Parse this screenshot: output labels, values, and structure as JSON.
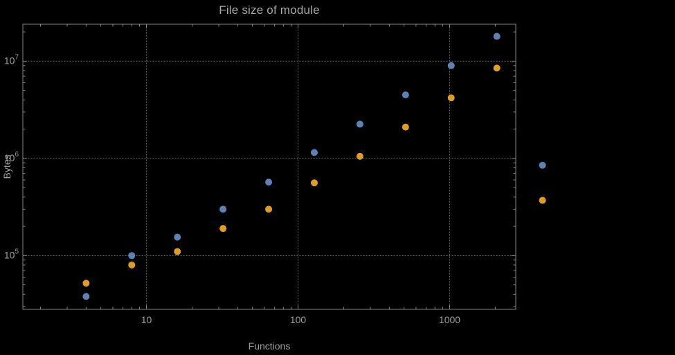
{
  "title": "File size of module",
  "chart_data": {
    "type": "scatter",
    "title": "File size of module",
    "xlabel": "Functions",
    "ylabel": "Bytes",
    "x_scale": "log",
    "y_scale": "log",
    "x_range": [
      1.53,
      2730
    ],
    "y_range": [
      28000,
      24000000
    ],
    "x_ticks": [
      {
        "value": 10,
        "label": "10"
      },
      {
        "value": 100,
        "label": "100"
      },
      {
        "value": 1000,
        "label": "1000"
      }
    ],
    "y_ticks": [
      {
        "value": 100000,
        "mantissa": "10",
        "exponent": "5"
      },
      {
        "value": 1000000,
        "mantissa": "10",
        "exponent": "6"
      },
      {
        "value": 10000000,
        "mantissa": "10",
        "exponent": "7"
      }
    ],
    "grid": "dotted",
    "legend": "none",
    "series": [
      {
        "name": "series-blue",
        "color": "#5e81b5",
        "points": [
          [
            4,
            38000
          ],
          [
            8,
            100000
          ],
          [
            16,
            155000
          ],
          [
            32,
            300000
          ],
          [
            64,
            570000
          ],
          [
            128,
            1150000
          ],
          [
            256,
            2250000
          ],
          [
            512,
            4500000
          ],
          [
            1024,
            9000000
          ],
          [
            2048,
            18000000
          ],
          [
            4096,
            850000
          ]
        ]
      },
      {
        "name": "series-orange",
        "color": "#e19c24",
        "points": [
          [
            4,
            52000
          ],
          [
            8,
            80000
          ],
          [
            16,
            110000
          ],
          [
            32,
            190000
          ],
          [
            64,
            300000
          ],
          [
            128,
            560000
          ],
          [
            256,
            1050000
          ],
          [
            512,
            2100000
          ],
          [
            1024,
            4200000
          ],
          [
            2048,
            8500000
          ],
          [
            4096,
            370000
          ]
        ]
      }
    ]
  },
  "colors": {
    "background": "#000000",
    "frame": "#848484",
    "grid": "#5e5e5e",
    "tick_text": "#9e9e9e",
    "title_text": "#a8a8a8",
    "axis_label_text": "#9e9e9e"
  }
}
